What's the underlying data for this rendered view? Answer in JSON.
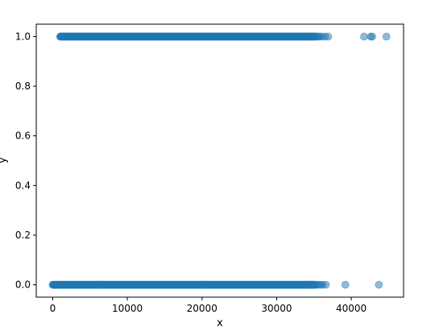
{
  "chart_data": {
    "type": "scatter",
    "title": "",
    "xlabel": "x",
    "ylabel": "y",
    "xlim": [
      -2200,
      47000
    ],
    "ylim": [
      -0.05,
      1.05
    ],
    "x_ticks": [
      0,
      10000,
      20000,
      30000,
      40000
    ],
    "x_tick_labels": [
      "0",
      "10000",
      "20000",
      "30000",
      "40000"
    ],
    "y_ticks": [
      0.0,
      0.2,
      0.4,
      0.6,
      0.8,
      1.0
    ],
    "y_tick_labels": [
      "0.0",
      "0.2",
      "0.4",
      "0.6",
      "0.8",
      "1.0"
    ],
    "grid": false,
    "marker_color": "#1f77b4",
    "marker_alpha": 0.5,
    "series": [
      {
        "dense_ranges": [
          {
            "y": 1.0,
            "x_start": 1000,
            "x_end": 35200
          },
          {
            "y": 0.0,
            "x_start": 0,
            "x_end": 35200
          }
        ],
        "points": [
          {
            "x": 35400,
            "y": 1.0
          },
          {
            "x": 35600,
            "y": 1.0
          },
          {
            "x": 35800,
            "y": 1.0
          },
          {
            "x": 36100,
            "y": 1.0
          },
          {
            "x": 36500,
            "y": 1.0
          },
          {
            "x": 36900,
            "y": 1.0
          },
          {
            "x": 41700,
            "y": 1.0
          },
          {
            "x": 42600,
            "y": 1.0
          },
          {
            "x": 42800,
            "y": 1.0
          },
          {
            "x": 44700,
            "y": 1.0
          },
          {
            "x": 35400,
            "y": 0.0
          },
          {
            "x": 35700,
            "y": 0.0
          },
          {
            "x": 35900,
            "y": 0.0
          },
          {
            "x": 36200,
            "y": 0.0
          },
          {
            "x": 36600,
            "y": 0.0
          },
          {
            "x": 39200,
            "y": 0.0
          },
          {
            "x": 43700,
            "y": 0.0
          }
        ]
      }
    ]
  }
}
